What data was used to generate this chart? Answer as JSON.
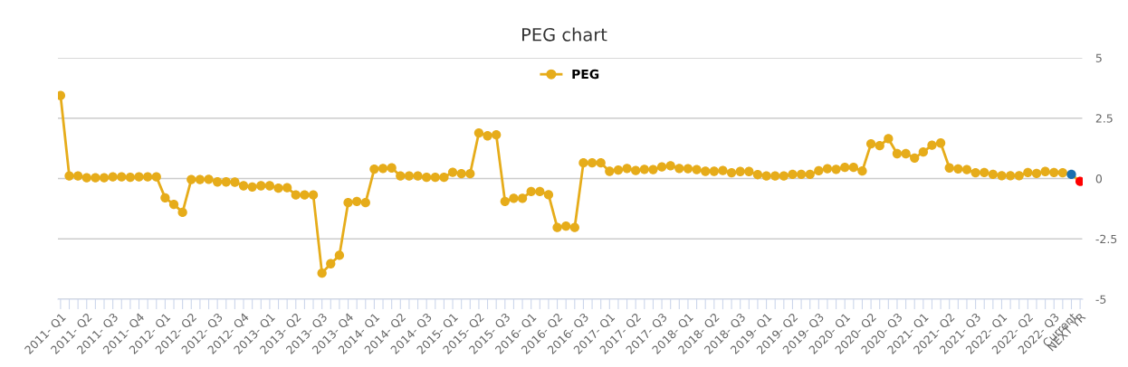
{
  "chart_data": {
    "type": "line",
    "title": "PEG chart",
    "categories": [
      "2011- Q1",
      null,
      null,
      "2011- Q2",
      null,
      null,
      "2011- Q3",
      null,
      null,
      "2011- Q4",
      null,
      null,
      "2012- Q1",
      null,
      null,
      "2012- Q2",
      null,
      null,
      "2012- Q3",
      null,
      null,
      "2012- Q4",
      null,
      null,
      "2013- Q1",
      null,
      null,
      "2013- Q2",
      null,
      null,
      "2013- Q3",
      null,
      null,
      "2013- Q4",
      null,
      null,
      "2014- Q1",
      null,
      null,
      "2014- Q2",
      null,
      null,
      "2014- Q3",
      null,
      null,
      "2015- Q1",
      null,
      null,
      "2015- Q2",
      null,
      null,
      "2015- Q3",
      null,
      null,
      "2016- Q1",
      null,
      null,
      "2016- Q2",
      null,
      null,
      "2016- Q3",
      null,
      null,
      "2017- Q1",
      null,
      null,
      "2017- Q2",
      null,
      null,
      "2017- Q3",
      null,
      null,
      "2018- Q1",
      null,
      null,
      "2018- Q2",
      null,
      null,
      "2018- Q3",
      null,
      null,
      "2019- Q1",
      null,
      null,
      "2019- Q2",
      null,
      null,
      "2019- Q3",
      null,
      null,
      "2020- Q1",
      null,
      null,
      "2020- Q2",
      null,
      null,
      "2020- Q3",
      null,
      null,
      "2021- Q1",
      null,
      null,
      "2021- Q2",
      null,
      null,
      "2021- Q3",
      null,
      null,
      "2022- Q1",
      null,
      null,
      "2022- Q2",
      null,
      null,
      "2022- Q3",
      null,
      "Current",
      "NEXT YR"
    ],
    "series": [
      {
        "name": "PEG",
        "color": "#e6ac1a",
        "colors": [
          "#e6ac1a",
          "#e6ac1a",
          "#e6ac1a",
          "#e6ac1a",
          "#e6ac1a",
          "#e6ac1a",
          "#e6ac1a",
          "#e6ac1a",
          "#e6ac1a",
          "#e6ac1a",
          "#e6ac1a",
          "#e6ac1a",
          "#e6ac1a",
          "#e6ac1a",
          "#e6ac1a",
          "#e6ac1a",
          "#e6ac1a",
          "#e6ac1a",
          "#e6ac1a",
          "#e6ac1a",
          "#e6ac1a",
          "#e6ac1a",
          "#e6ac1a",
          "#e6ac1a",
          "#e6ac1a",
          "#e6ac1a",
          "#e6ac1a",
          "#e6ac1a",
          "#e6ac1a",
          "#e6ac1a",
          "#e6ac1a",
          "#e6ac1a",
          "#e6ac1a",
          "#e6ac1a",
          "#e6ac1a",
          "#e6ac1a",
          "#e6ac1a",
          "#e6ac1a",
          "#e6ac1a",
          "#e6ac1a",
          "#e6ac1a",
          "#e6ac1a",
          "#e6ac1a",
          "#e6ac1a",
          "#e6ac1a",
          "#e6ac1a",
          "#e6ac1a",
          "#e6ac1a",
          "#e6ac1a",
          "#e6ac1a",
          "#e6ac1a",
          "#e6ac1a",
          "#e6ac1a",
          "#e6ac1a",
          "#e6ac1a",
          "#e6ac1a",
          "#e6ac1a",
          "#e6ac1a",
          "#e6ac1a",
          "#e6ac1a",
          "#e6ac1a",
          "#e6ac1a",
          "#e6ac1a",
          "#e6ac1a",
          "#e6ac1a",
          "#e6ac1a",
          "#e6ac1a",
          "#e6ac1a",
          "#e6ac1a",
          "#e6ac1a",
          "#e6ac1a",
          "#e6ac1a",
          "#e6ac1a",
          "#e6ac1a",
          "#e6ac1a",
          "#e6ac1a",
          "#e6ac1a",
          "#e6ac1a",
          "#e6ac1a",
          "#e6ac1a",
          "#e6ac1a",
          "#e6ac1a",
          "#e6ac1a",
          "#e6ac1a",
          "#e6ac1a",
          "#e6ac1a",
          "#e6ac1a",
          "#e6ac1a",
          "#e6ac1a",
          "#e6ac1a",
          "#e6ac1a",
          "#e6ac1a",
          "#e6ac1a",
          "#e6ac1a",
          "#e6ac1a",
          "#e6ac1a",
          "#e6ac1a",
          "#e6ac1a",
          "#e6ac1a",
          "#e6ac1a",
          "#e6ac1a",
          "#e6ac1a",
          "#e6ac1a",
          "#e6ac1a",
          "#e6ac1a",
          "#e6ac1a",
          "#e6ac1a",
          "#e6ac1a",
          "#e6ac1a",
          "#e6ac1a",
          "#e6ac1a",
          "#e6ac1a",
          "#e6ac1a",
          "#e6ac1a",
          "#e6ac1a",
          "#e6ac1a",
          "#1a6fb0",
          "#ff0000"
        ],
        "values": [
          3.44,
          0.11,
          0.11,
          0.03,
          0.03,
          0.03,
          0.07,
          0.07,
          0.05,
          0.07,
          0.07,
          0.07,
          -0.8,
          -1.07,
          -1.4,
          -0.04,
          -0.04,
          -0.03,
          -0.14,
          -0.14,
          -0.15,
          -0.3,
          -0.35,
          -0.3,
          -0.3,
          -0.4,
          -0.38,
          -0.68,
          -0.68,
          -0.68,
          -3.92,
          -3.53,
          -3.18,
          -1.0,
          -0.95,
          -1.0,
          0.39,
          0.42,
          0.44,
          0.11,
          0.11,
          0.11,
          0.05,
          0.05,
          0.05,
          0.26,
          0.2,
          0.2,
          1.89,
          1.77,
          1.81,
          -0.95,
          -0.82,
          -0.82,
          -0.54,
          -0.54,
          -0.67,
          -2.03,
          -1.97,
          -2.03,
          0.65,
          0.65,
          0.65,
          0.3,
          0.35,
          0.42,
          0.33,
          0.38,
          0.37,
          0.48,
          0.53,
          0.42,
          0.41,
          0.37,
          0.3,
          0.3,
          0.33,
          0.24,
          0.29,
          0.29,
          0.16,
          0.11,
          0.11,
          0.11,
          0.17,
          0.17,
          0.17,
          0.32,
          0.41,
          0.38,
          0.46,
          0.46,
          0.31,
          1.44,
          1.36,
          1.65,
          1.03,
          1.03,
          0.85,
          1.1,
          1.38,
          1.47,
          0.44,
          0.4,
          0.37,
          0.24,
          0.25,
          0.17,
          0.12,
          0.12,
          0.12,
          0.25,
          0.21,
          0.29,
          0.25,
          0.24,
          0.17,
          -0.12
        ]
      }
    ],
    "ylim": [
      -5,
      5
    ],
    "yticks": [
      -5,
      -2.5,
      0,
      2.5,
      5
    ],
    "grid": "y",
    "legend": "top",
    "marker": "circle",
    "line_style": "solid"
  }
}
